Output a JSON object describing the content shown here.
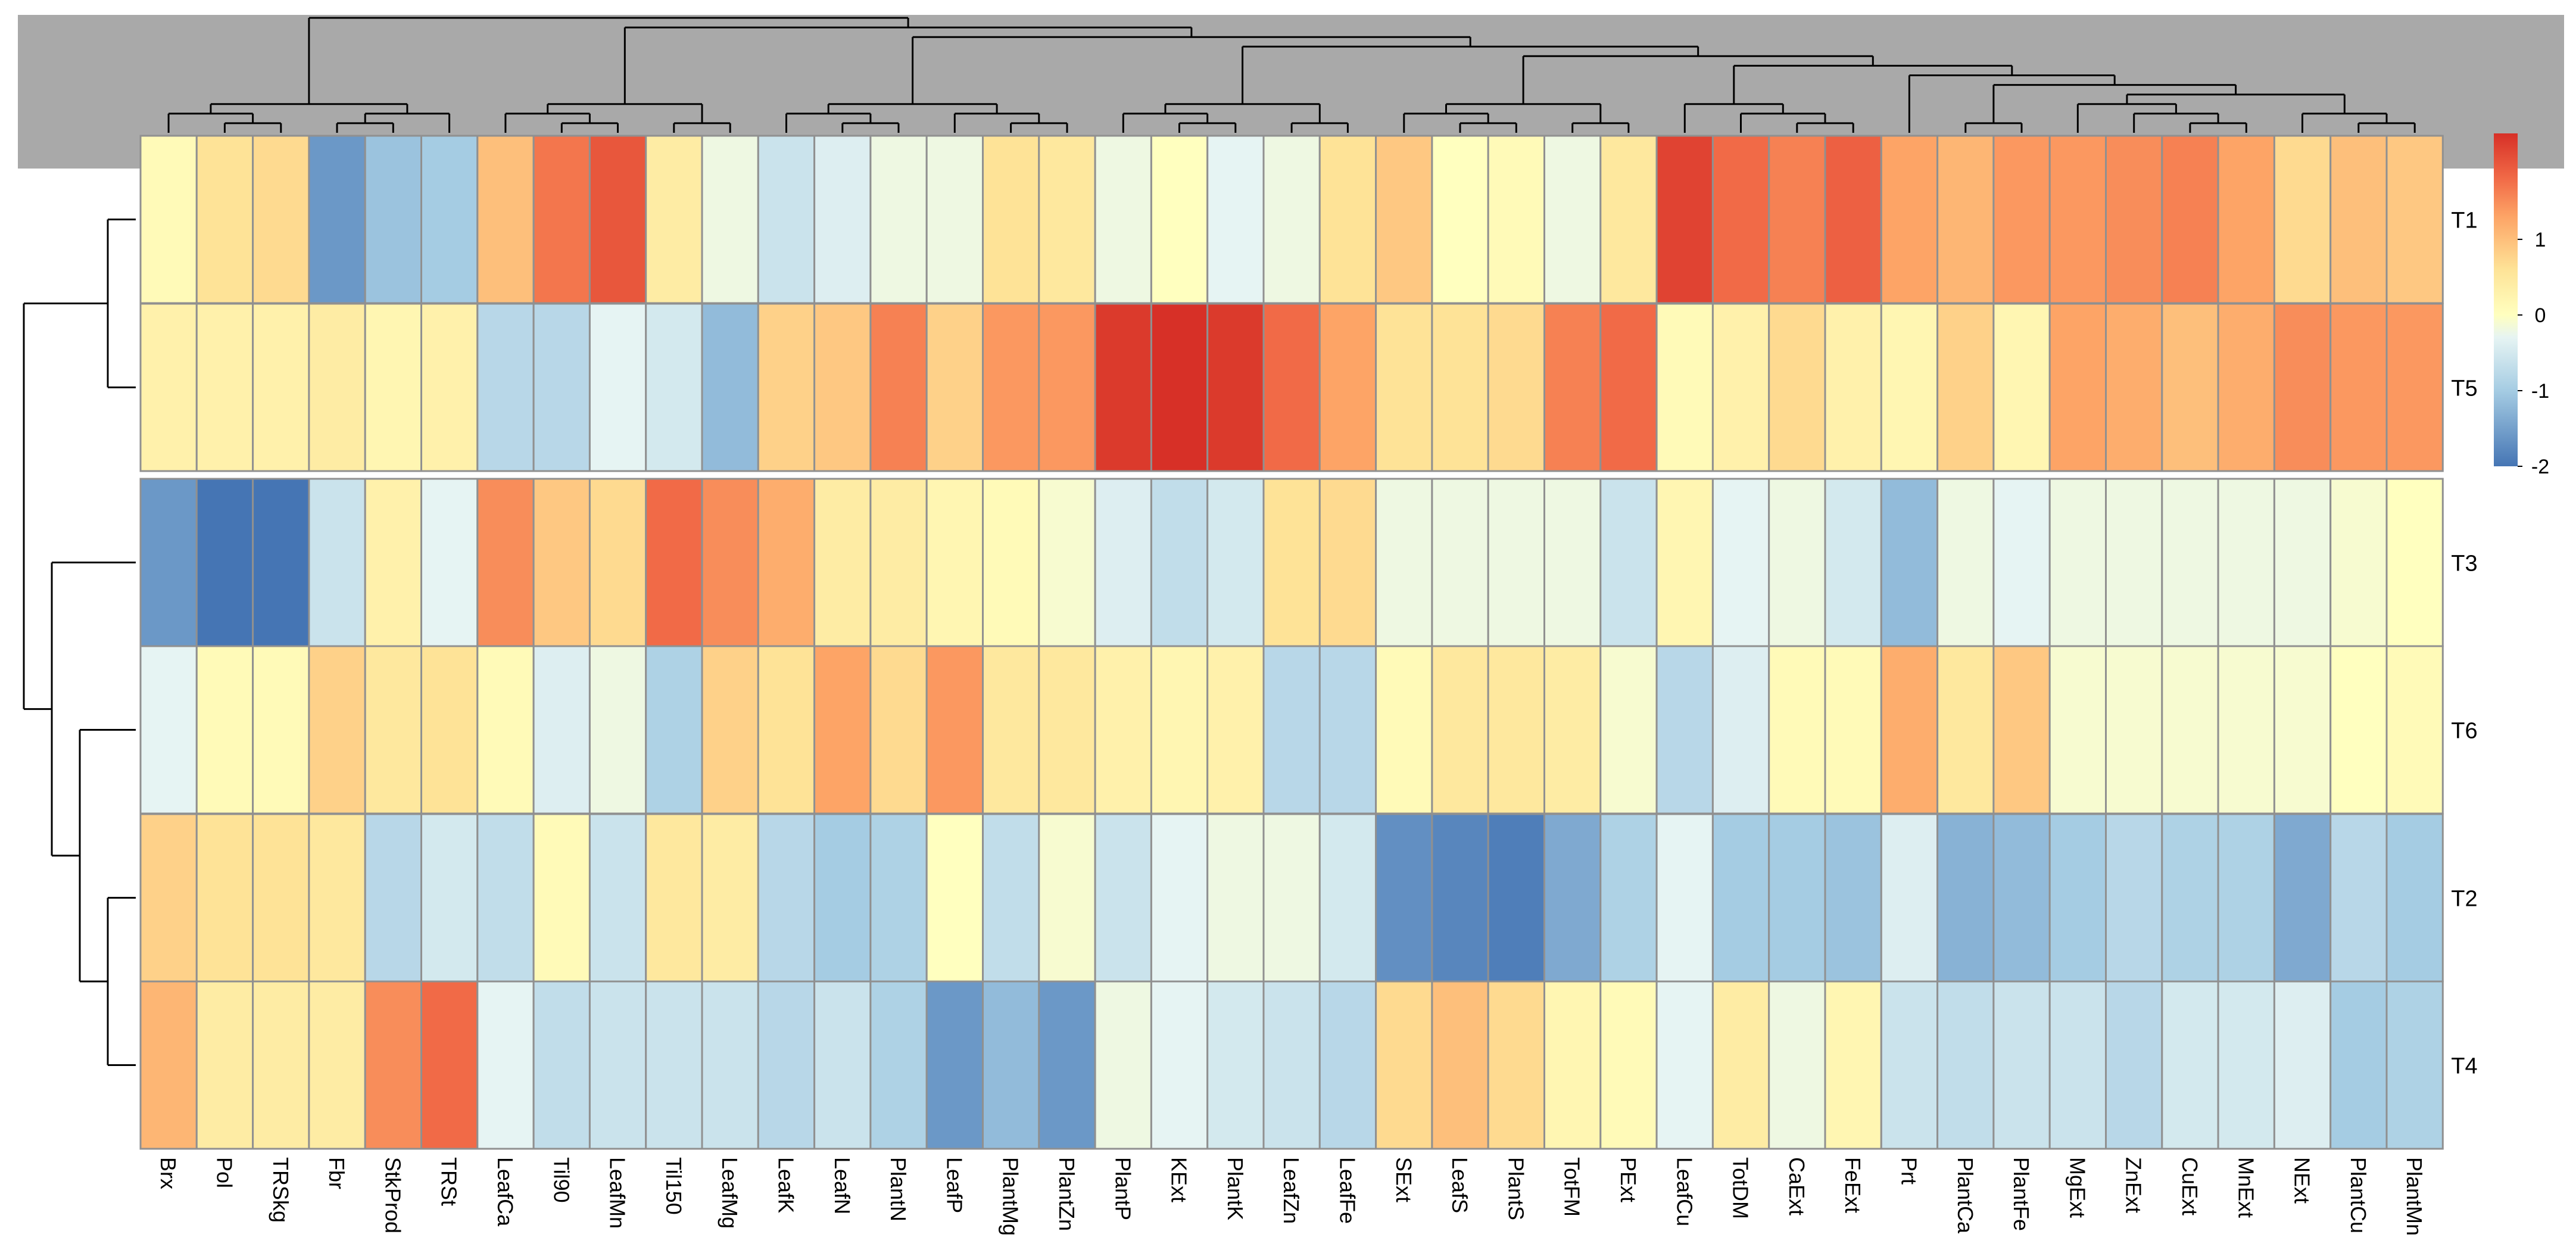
{
  "chart_data": {
    "type": "heatmap",
    "title": "",
    "columns": [
      "Brx",
      "Pol",
      "TRSkg",
      "Fbr",
      "StkProd",
      "TRSt",
      "LeafCa",
      "Til90",
      "LeafMn",
      "Til150",
      "LeafMg",
      "LeafK",
      "LeafN",
      "PlantN",
      "LeafP",
      "PlantMg",
      "PlantZn",
      "PlantP",
      "KExt",
      "PlantK",
      "LeafZn",
      "LeafFe",
      "SExt",
      "LeafS",
      "PlantS",
      "TotFM",
      "PExt",
      "LeafCu",
      "TotDM",
      "CaExt",
      "FeExt",
      "Prt",
      "PlantCa",
      "PlantFe",
      "MgExt",
      "ZnExt",
      "CuExt",
      "MnExt",
      "NExt",
      "PlantCu",
      "PlantMn"
    ],
    "rows": [
      "T1",
      "T5",
      "T3",
      "T6",
      "T2",
      "T4"
    ],
    "row_gap_after": 1,
    "values": [
      [
        0.1,
        0.6,
        0.7,
        -1.6,
        -1.1,
        -1.0,
        1.0,
        1.7,
        2.0,
        0.4,
        -0.2,
        -0.6,
        -0.4,
        -0.2,
        -0.2,
        0.6,
        0.5,
        -0.2,
        0.0,
        -0.3,
        -0.2,
        0.6,
        0.9,
        0.0,
        0.1,
        -0.2,
        0.5,
        2.2,
        1.8,
        1.6,
        1.9,
        1.3,
        1.1,
        1.4,
        1.4,
        1.5,
        1.6,
        1.3,
        0.7,
        1.0,
        0.9
      ],
      [
        0.3,
        0.3,
        0.3,
        0.4,
        0.2,
        0.3,
        -0.8,
        -0.8,
        -0.3,
        -0.5,
        -1.2,
        0.8,
        0.9,
        1.6,
        0.8,
        1.4,
        1.4,
        2.3,
        2.4,
        2.3,
        1.8,
        1.3,
        0.6,
        0.6,
        0.7,
        1.6,
        1.8,
        0.1,
        0.3,
        0.7,
        0.3,
        0.2,
        0.8,
        0.2,
        1.3,
        1.2,
        1.0,
        1.2,
        1.5,
        1.4,
        1.4
      ],
      [
        -1.6,
        -2.0,
        -2.0,
        -0.6,
        0.3,
        -0.3,
        1.5,
        0.9,
        0.7,
        1.8,
        1.5,
        1.2,
        0.4,
        0.4,
        0.2,
        0.1,
        -0.1,
        -0.4,
        -0.7,
        -0.5,
        0.6,
        0.7,
        -0.2,
        -0.2,
        -0.2,
        -0.2,
        -0.6,
        0.2,
        -0.3,
        -0.2,
        -0.5,
        -1.2,
        -0.2,
        -0.3,
        -0.2,
        -0.2,
        -0.2,
        -0.2,
        -0.2,
        -0.1,
        0.0
      ],
      [
        -0.3,
        0.1,
        0.1,
        0.8,
        0.5,
        0.6,
        0.1,
        -0.4,
        -0.2,
        -0.9,
        0.8,
        0.6,
        1.3,
        0.7,
        1.4,
        0.5,
        0.5,
        0.3,
        0.2,
        0.3,
        -0.8,
        -0.8,
        0.1,
        0.5,
        0.5,
        0.4,
        -0.1,
        -0.8,
        -0.4,
        0.1,
        0.1,
        1.2,
        0.5,
        0.9,
        -0.1,
        -0.1,
        -0.1,
        -0.1,
        -0.1,
        0.0,
        0.1
      ],
      [
        0.8,
        0.6,
        0.6,
        0.5,
        -0.8,
        -0.5,
        -0.7,
        0.1,
        -0.6,
        0.5,
        0.4,
        -0.8,
        -1.0,
        -0.9,
        0.0,
        -0.7,
        -0.1,
        -0.6,
        -0.3,
        -0.2,
        -0.2,
        -0.5,
        -1.7,
        -1.8,
        -1.9,
        -1.4,
        -0.9,
        -0.3,
        -1.0,
        -1.0,
        -1.1,
        -0.4,
        -1.3,
        -1.2,
        -1.0,
        -0.8,
        -0.9,
        -0.9,
        -1.4,
        -0.8,
        -1.0
      ],
      [
        1.1,
        0.4,
        0.4,
        0.4,
        1.5,
        1.8,
        -0.3,
        -0.7,
        -0.6,
        -0.6,
        -0.6,
        -0.8,
        -0.6,
        -0.9,
        -1.6,
        -1.2,
        -1.6,
        -0.2,
        -0.3,
        -0.5,
        -0.6,
        -0.8,
        0.7,
        1.0,
        0.7,
        0.2,
        0.1,
        -0.3,
        0.4,
        -0.2,
        0.2,
        -0.6,
        -0.7,
        -0.6,
        -0.6,
        -0.8,
        -0.5,
        -0.5,
        -0.4,
        -1.0,
        -0.9
      ]
    ],
    "color_scale": {
      "min": -2,
      "max": 2.4,
      "stops": [
        {
          "value": -2.0,
          "color": "#4575b4"
        },
        {
          "value": -1.0,
          "color": "#a5cce3"
        },
        {
          "value": -0.3,
          "color": "#e6f4f3"
        },
        {
          "value": 0.0,
          "color": "#ffffbf"
        },
        {
          "value": 0.6,
          "color": "#fee397"
        },
        {
          "value": 1.3,
          "color": "#fda466"
        },
        {
          "value": 1.8,
          "color": "#f16a47"
        },
        {
          "value": 2.4,
          "color": "#d73027"
        }
      ]
    },
    "legend": {
      "ticks": [
        1,
        0,
        -1,
        -2
      ],
      "labels": [
        "1",
        "0",
        "-1",
        "-2"
      ],
      "range": [
        -2,
        2.4
      ]
    },
    "col_dendrogram": "(((Brx,(Pol,TRSkg)),((Fbr,StkProd),TRSt)),(((LeafCa,(Til90,LeafMn)),(Til150,LeafMg)),(((LeafK,(LeafN,PlantN)),(LeafP,(PlantMg,PlantZn))),(((PlantP,(KExt,PlantK)),(LeafZn,LeafFe)),(((SExt,(LeafS,PlantS)),(TotFM,PExt)),((LeafCu,(TotDM,(CaExt,FeExt))),(Prt,((PlantCa,PlantFe),((MgExt,(ZnExt,(CuExt,MnExt))),(NExt,(PlantCu,PlantMn)))))))))))",
    "row_dendrogram": "((T1,T5),(T3,(T6,(T2,T4))))"
  },
  "colors": {
    "col_dendrogram_bg": "#a9a9a9",
    "cell_border": "#909090",
    "dendrogram_line": "#000000",
    "text": "#000000"
  }
}
